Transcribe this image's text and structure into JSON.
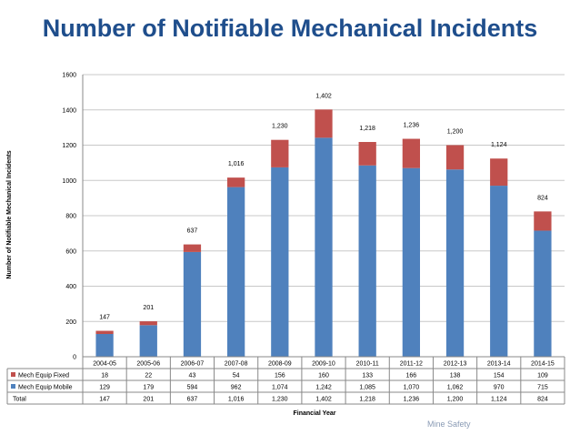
{
  "page": {
    "title": "Number of Notifiable Mechanical Incidents",
    "footer_fragment": "Mine Safety"
  },
  "chart_data": {
    "type": "bar",
    "stacked": true,
    "title": "Number of Notifiable Mechanical Incidents",
    "xlabel": "Financial Year",
    "ylabel": "Number of Notifiable Mechanical Incidents",
    "ylim": [
      0,
      1600
    ],
    "yticks": [
      0,
      200,
      400,
      600,
      800,
      1000,
      1200,
      1400,
      1600
    ],
    "grid": true,
    "categories": [
      "2004-05",
      "2005-06",
      "2006-07",
      "2007-08",
      "2008-09",
      "2009-10",
      "2010-11",
      "2011-12",
      "2012-13",
      "2013-14",
      "2014-15"
    ],
    "series": [
      {
        "name": "Mech Equip Mobile",
        "color": "#4f81bd",
        "values": [
          129,
          179,
          594,
          962,
          1074,
          1242,
          1085,
          1070,
          1062,
          970,
          715
        ]
      },
      {
        "name": "Mech Equip Fixed",
        "color": "#c0504d",
        "values": [
          18,
          22,
          43,
          54,
          156,
          160,
          133,
          166,
          138,
          154,
          109
        ]
      }
    ],
    "totals": [
      147,
      201,
      637,
      1016,
      1230,
      1402,
      1218,
      1236,
      1200,
      1124,
      824
    ],
    "total_labels": [
      "147",
      "201",
      "637",
      "1,016",
      "1,230",
      "1,402",
      "1,218",
      "1,236",
      "1,200",
      "1,124",
      "824"
    ],
    "table": {
      "rows": [
        {
          "label": "Mech Equip Fixed",
          "key": "fixed",
          "cells": [
            "18",
            "22",
            "43",
            "54",
            "156",
            "160",
            "133",
            "166",
            "138",
            "154",
            "109"
          ]
        },
        {
          "label": "Mech Equip Mobile",
          "key": "mobile",
          "cells": [
            "129",
            "179",
            "594",
            "962",
            "1,074",
            "1,242",
            "1,085",
            "1,070",
            "1,062",
            "970",
            "715"
          ]
        },
        {
          "label": "Total",
          "key": "total",
          "cells": [
            "147",
            "201",
            "637",
            "1,016",
            "1,230",
            "1,402",
            "1,218",
            "1,236",
            "1,200",
            "1,124",
            "824"
          ]
        }
      ]
    }
  }
}
